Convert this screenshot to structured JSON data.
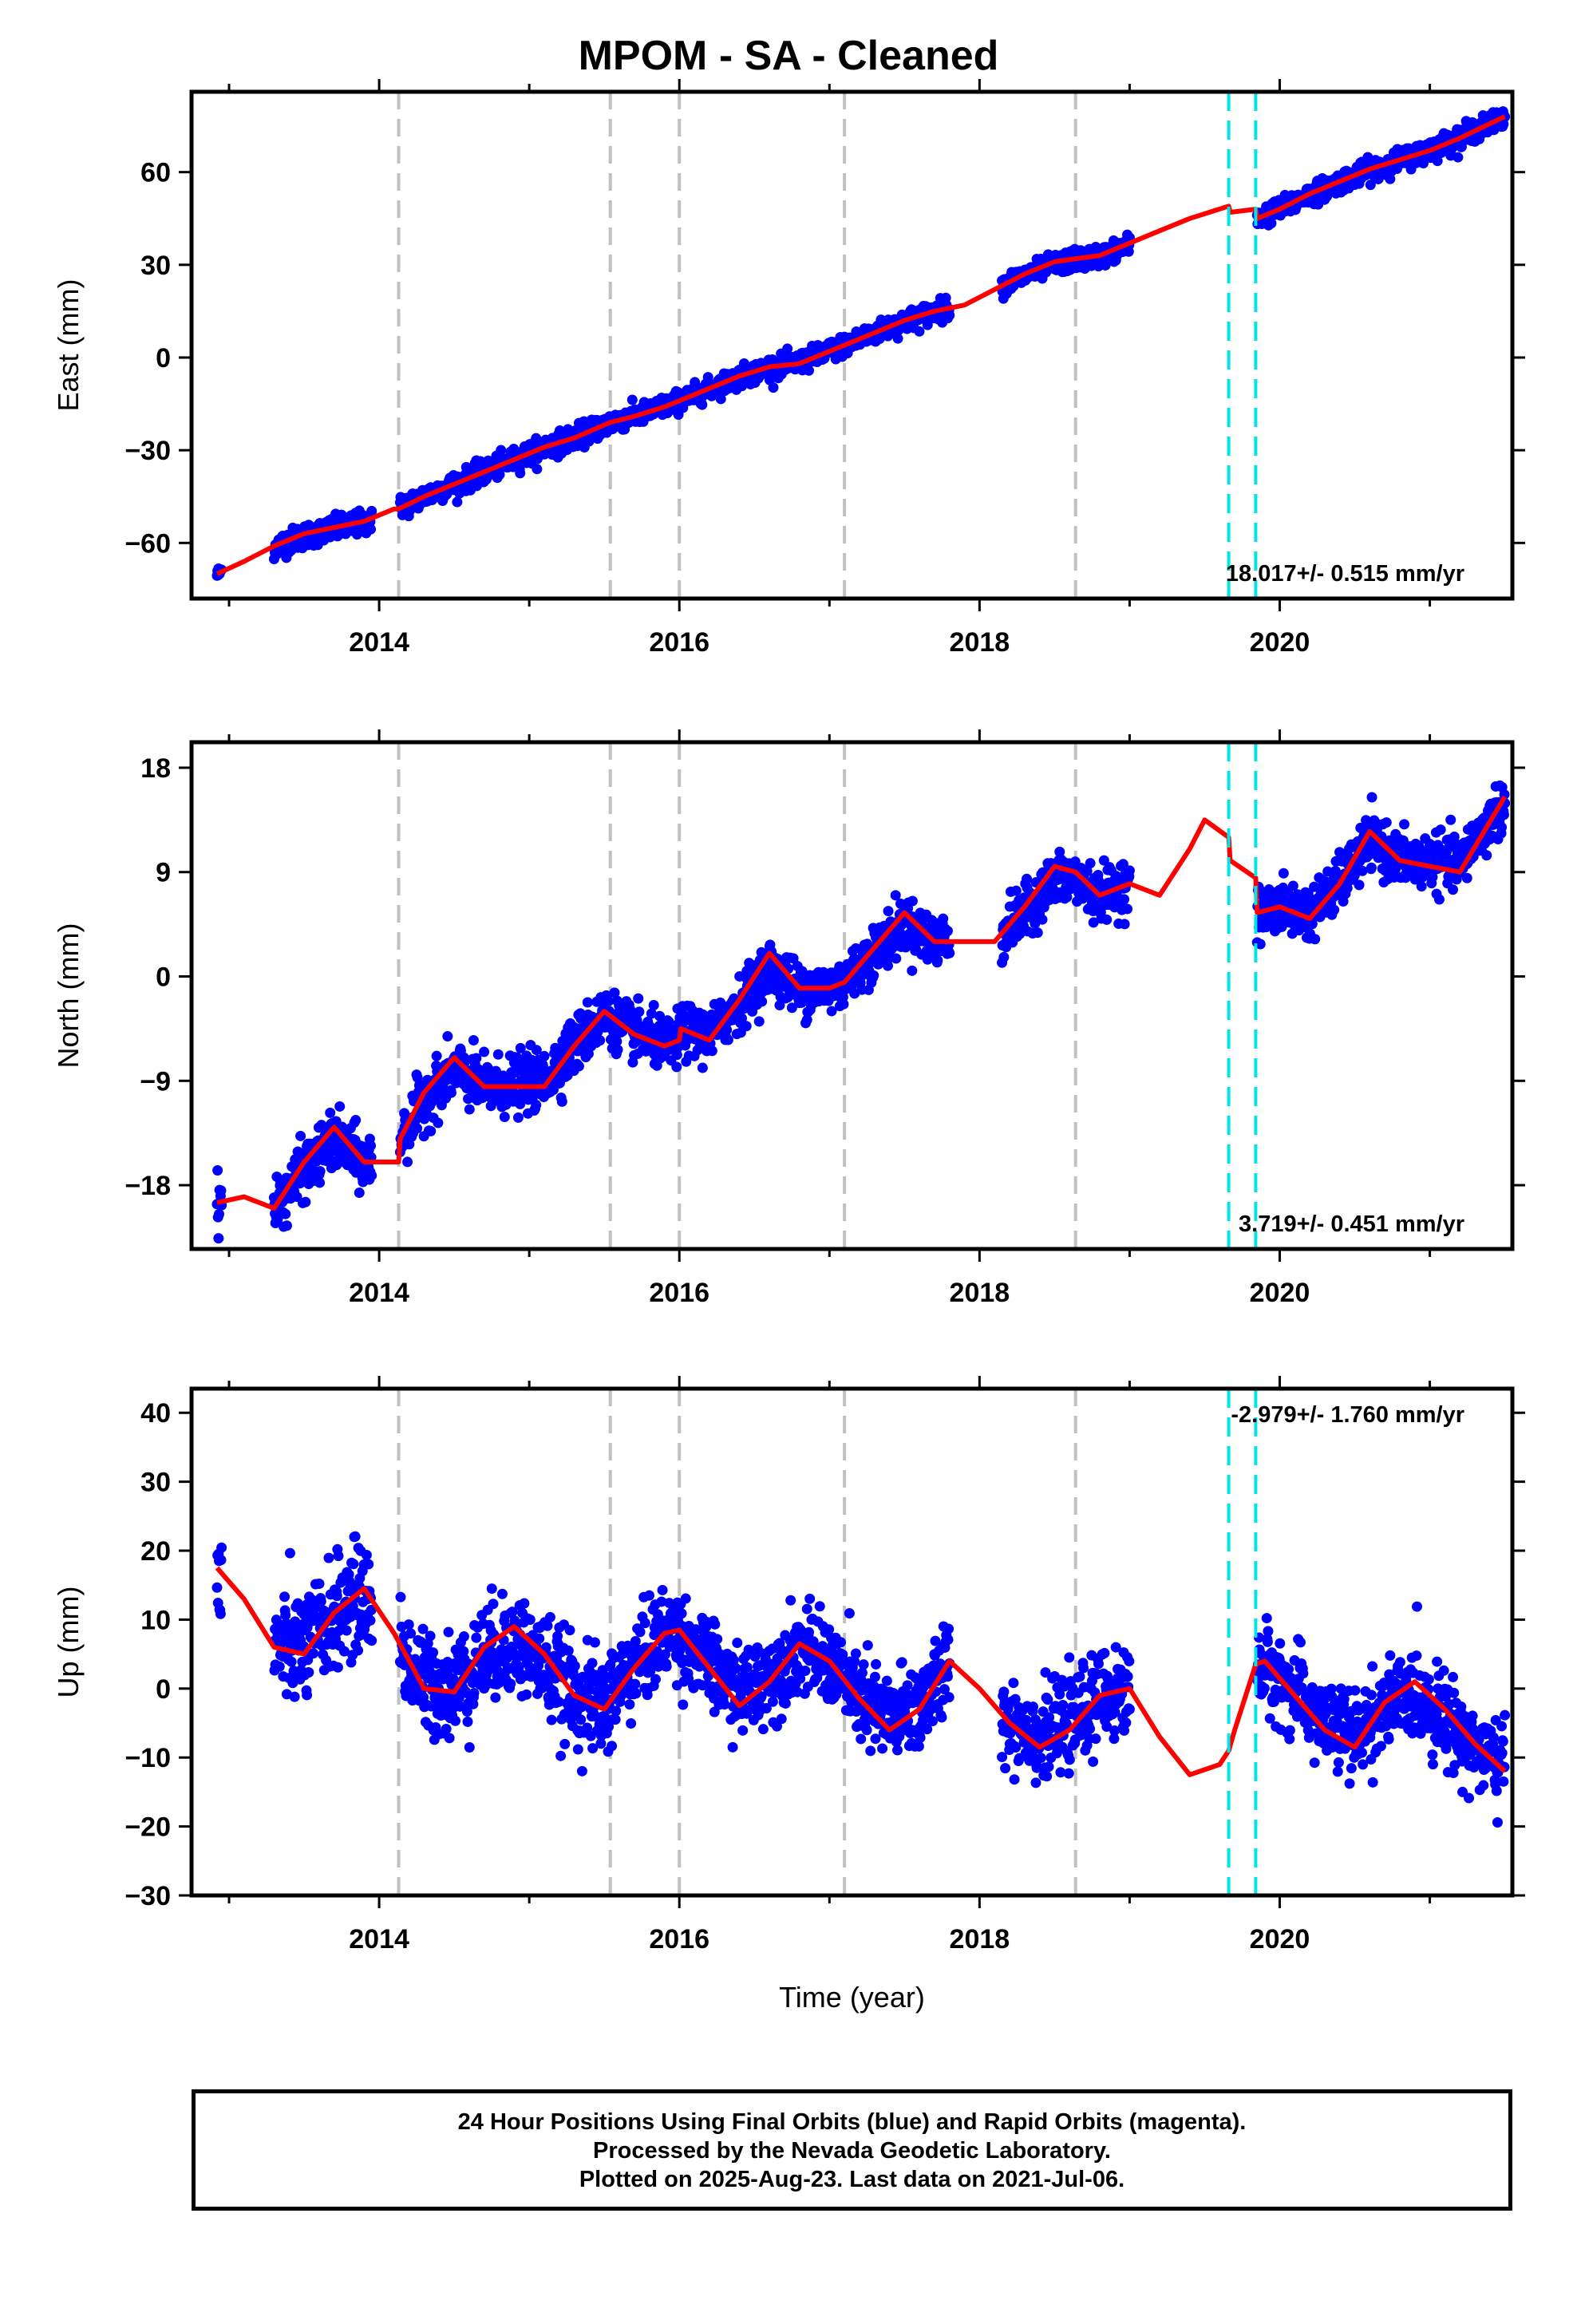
{
  "title": "MPOM  - SA - Cleaned",
  "footer": {
    "line1": "24 Hour Positions Using Final Orbits (blue) and Rapid Orbits (magenta).",
    "line2": "Processed by the Nevada Geodetic Laboratory.",
    "line3": "Plotted on 2025-Aug-23. Last data on 2021-Jul-06."
  },
  "colors": {
    "data_points": "#0000ff",
    "model_curve": "#ff0000",
    "equipment_change": "#c0c0c0",
    "earthquake_marker": "#00e5e5"
  },
  "chart_data": [
    {
      "type": "scatter",
      "name": "east",
      "xlabel": "",
      "ylabel": "East (mm)",
      "xlim": [
        2012.75,
        2021.55
      ],
      "ylim": [
        -78,
        86
      ],
      "xticks": [
        2014,
        2016,
        2018,
        2020
      ],
      "yticks": [
        -60,
        -30,
        0,
        30,
        60
      ],
      "rate_label": "18.017+/- 0.515 mm/yr",
      "rate_position": "bottom-right",
      "grey_dashed_lines": [
        2014.13,
        2015.54,
        2016.0,
        2017.1,
        2018.64
      ],
      "cyan_dashed_lines": [
        2019.66,
        2019.84
      ],
      "model_curve": {
        "x": [
          2012.92,
          2013.1,
          2013.3,
          2013.5,
          2013.7,
          2013.9,
          2014.1,
          2014.13,
          2014.3,
          2014.5,
          2014.7,
          2014.9,
          2015.1,
          2015.3,
          2015.54,
          2015.7,
          2015.9,
          2016.0,
          2016.2,
          2016.4,
          2016.6,
          2016.8,
          2017.0,
          2017.1,
          2017.3,
          2017.5,
          2017.7,
          2017.9,
          2018.1,
          2018.3,
          2018.5,
          2018.64,
          2018.8,
          2019.0,
          2019.2,
          2019.4,
          2019.66,
          2019.67,
          2019.84,
          2019.85,
          2020.0,
          2020.2,
          2020.4,
          2020.6,
          2020.8,
          2021.0,
          2021.2,
          2021.5
        ],
        "y": [
          -70,
          -66,
          -61,
          -57,
          -55,
          -53,
          -49,
          -49,
          -45,
          -41,
          -37,
          -33,
          -29,
          -26,
          -21,
          -19,
          -16,
          -14,
          -10,
          -6,
          -3,
          -2,
          2,
          4,
          8,
          12,
          15,
          17,
          22,
          27,
          31,
          32,
          33,
          37,
          41,
          45,
          49,
          47,
          48,
          45,
          48,
          53,
          57,
          61,
          64,
          67,
          71,
          78
        ]
      },
      "data_segments": [
        {
          "x_start": 2012.92,
          "x_end": 2012.95,
          "y_start": -71,
          "y_end": -68,
          "noise": 2
        },
        {
          "x_start": 2013.3,
          "x_end": 2013.95,
          "y_start": -62,
          "y_end": -54,
          "noise": 3.5
        },
        {
          "x_start": 2014.14,
          "x_end": 2015.55,
          "y_start": -48,
          "y_end": -21,
          "noise": 3.2
        },
        {
          "x_start": 2015.55,
          "x_end": 2016.0,
          "y_start": -21,
          "y_end": -14,
          "noise": 3
        },
        {
          "x_start": 2016.0,
          "x_end": 2017.1,
          "y_start": -14,
          "y_end": 4,
          "noise": 3
        },
        {
          "x_start": 2017.1,
          "x_end": 2017.8,
          "y_start": 4,
          "y_end": 16,
          "noise": 3
        },
        {
          "x_start": 2018.15,
          "x_end": 2019.0,
          "y_start": 23,
          "y_end": 35,
          "noise": 3
        },
        {
          "x_start": 2019.85,
          "x_end": 2021.5,
          "y_start": 45,
          "y_end": 78,
          "noise": 3
        }
      ]
    },
    {
      "type": "scatter",
      "name": "north",
      "xlabel": "",
      "ylabel": "North (mm)",
      "xlim": [
        2012.75,
        2021.55
      ],
      "ylim": [
        -23.5,
        20.2
      ],
      "xticks": [
        2014,
        2016,
        2018,
        2020
      ],
      "yticks": [
        -18,
        -9,
        0,
        9,
        18
      ],
      "rate_label": "3.719+/- 0.451 mm/yr",
      "rate_position": "bottom-right",
      "grey_dashed_lines": [
        2014.13,
        2015.54,
        2016.0,
        2017.1,
        2018.64
      ],
      "cyan_dashed_lines": [
        2019.66,
        2019.84
      ],
      "model_curve": {
        "x": [
          2012.92,
          2013.1,
          2013.3,
          2013.5,
          2013.7,
          2013.9,
          2014.1,
          2014.13,
          2014.14,
          2014.3,
          2014.5,
          2014.7,
          2014.9,
          2015.1,
          2015.3,
          2015.5,
          2015.7,
          2015.9,
          2016.0,
          2016.01,
          2016.2,
          2016.4,
          2016.6,
          2016.8,
          2017.0,
          2017.1,
          2017.3,
          2017.5,
          2017.7,
          2017.9,
          2018.1,
          2018.3,
          2018.5,
          2018.64,
          2018.8,
          2019.0,
          2019.2,
          2019.4,
          2019.5,
          2019.66,
          2019.67,
          2019.84,
          2019.85,
          2020.0,
          2020.2,
          2020.4,
          2020.6,
          2020.8,
          2021.0,
          2021.2,
          2021.5
        ],
        "y": [
          -19.5,
          -19,
          -20,
          -16,
          -13,
          -16,
          -16,
          -16,
          -14,
          -10,
          -7,
          -9.5,
          -9.5,
          -9.5,
          -6,
          -3,
          -5,
          -6,
          -5.5,
          -4.5,
          -5.5,
          -2,
          2,
          -1,
          -1,
          -0.5,
          2.5,
          5.5,
          3,
          3,
          3,
          6,
          9.5,
          9,
          7,
          8,
          7,
          11,
          13.5,
          12,
          10,
          8.5,
          5.5,
          6,
          5,
          8,
          12.5,
          10,
          9.5,
          9,
          15.5
        ]
      },
      "data_segments": [
        {
          "x_start": 2012.92,
          "x_end": 2012.95,
          "y_start": -19,
          "y_end": -19,
          "noise": 2
        },
        {
          "x_start": 2013.3,
          "x_end": 2013.95,
          "y_start": -20,
          "y_end": -16,
          "noise": 2.2
        },
        {
          "x_start": 2014.14,
          "x_end": 2015.55,
          "y_start": -14,
          "y_end": -4,
          "noise": 2.2
        },
        {
          "x_start": 2015.55,
          "x_end": 2016.0,
          "y_start": -4,
          "y_end": -6,
          "noise": 2
        },
        {
          "x_start": 2016.0,
          "x_end": 2017.1,
          "y_start": -5,
          "y_end": -0.5,
          "noise": 2
        },
        {
          "x_start": 2017.1,
          "x_end": 2017.8,
          "y_start": 0,
          "y_end": 3.5,
          "noise": 2
        },
        {
          "x_start": 2018.15,
          "x_end": 2019.0,
          "y_start": 3,
          "y_end": 8,
          "noise": 2
        },
        {
          "x_start": 2019.85,
          "x_end": 2021.5,
          "y_start": 5,
          "y_end": 14,
          "noise": 2
        }
      ]
    },
    {
      "type": "scatter",
      "name": "up",
      "xlabel": "Time (year)",
      "ylabel": "Up (mm)",
      "xlim": [
        2012.75,
        2021.55
      ],
      "ylim": [
        -30,
        43.5
      ],
      "xticks": [
        2014,
        2016,
        2018,
        2020
      ],
      "yticks": [
        -30,
        -20,
        -10,
        0,
        10,
        20,
        30,
        40
      ],
      "rate_label": "-2.979+/- 1.760 mm/yr",
      "rate_position": "top-right",
      "grey_dashed_lines": [
        2014.13,
        2015.54,
        2016.0,
        2017.1,
        2018.64
      ],
      "cyan_dashed_lines": [
        2019.66,
        2019.84
      ],
      "model_curve": {
        "x": [
          2012.92,
          2013.1,
          2013.3,
          2013.5,
          2013.7,
          2013.9,
          2014.1,
          2014.3,
          2014.5,
          2014.7,
          2014.9,
          2015.1,
          2015.3,
          2015.5,
          2015.7,
          2015.9,
          2016.0,
          2016.2,
          2016.4,
          2016.6,
          2016.8,
          2017.0,
          2017.2,
          2017.4,
          2017.6,
          2017.8,
          2018.0,
          2018.2,
          2018.4,
          2018.6,
          2018.8,
          2019.0,
          2019.2,
          2019.4,
          2019.6,
          2019.66,
          2019.7,
          2019.84,
          2019.9,
          2020.1,
          2020.3,
          2020.5,
          2020.7,
          2020.9,
          2021.1,
          2021.3,
          2021.5
        ],
        "y": [
          17.5,
          13,
          6,
          5,
          11,
          14.5,
          8,
          0,
          -0.5,
          6,
          9,
          5,
          -1,
          -3,
          3,
          8,
          8.5,
          3,
          -2.5,
          1,
          6.5,
          4,
          -1.5,
          -6,
          -3,
          4,
          0,
          -5,
          -8.5,
          -6,
          -1,
          0,
          -7,
          -12.5,
          -11,
          -9,
          -6,
          3.5,
          4,
          -1,
          -6,
          -8.5,
          -2,
          1,
          -3,
          -8,
          -12
        ]
      },
      "data_segments": [
        {
          "x_start": 2012.92,
          "x_end": 2012.95,
          "y_start": 8,
          "y_end": 8,
          "noise": 9
        },
        {
          "x_start": 2013.3,
          "x_end": 2013.95,
          "y_start": 6,
          "y_end": 12,
          "noise": 7
        },
        {
          "x_start": 2014.14,
          "x_end": 2015.55,
          "y_start": 3,
          "y_end": -2,
          "noise": 6.5
        },
        {
          "x_start": 2015.55,
          "x_end": 2016.0,
          "y_start": 3,
          "y_end": 8,
          "noise": 6
        },
        {
          "x_start": 2016.0,
          "x_end": 2017.1,
          "y_start": 5,
          "y_end": 3,
          "noise": 5.5
        },
        {
          "x_start": 2017.1,
          "x_end": 2017.8,
          "y_start": -1,
          "y_end": 0,
          "noise": 6
        },
        {
          "x_start": 2018.15,
          "x_end": 2019.0,
          "y_start": -3,
          "y_end": -2,
          "noise": 5.5
        },
        {
          "x_start": 2019.85,
          "x_end": 2021.5,
          "y_start": 2,
          "y_end": -11,
          "noise": 5.5
        }
      ]
    }
  ]
}
